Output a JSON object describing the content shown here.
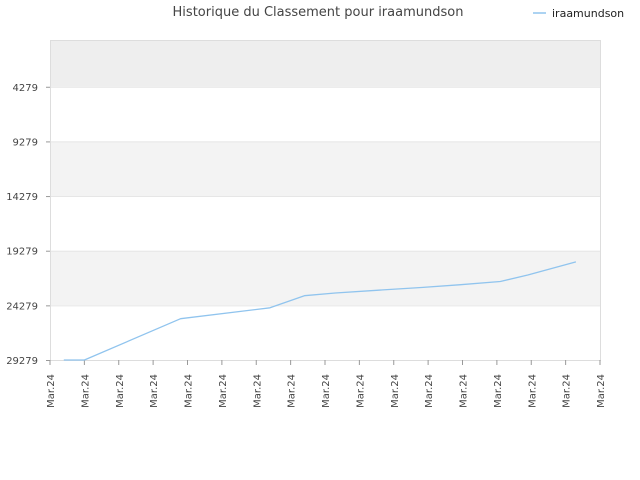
{
  "chart_data": {
    "type": "line",
    "title": "Historique du Classement pour iraamundson",
    "xlabel": "",
    "ylabel": "",
    "y_axis_inverted": true,
    "ylim": [
      0,
      29279
    ],
    "y_ticks": [
      "4279",
      "9279",
      "14279",
      "19279",
      "24279",
      "29279"
    ],
    "x_ticks": [
      "Mar.24",
      "Mar.24",
      "Mar.24",
      "Mar.24",
      "Mar.24",
      "Mar.24",
      "Mar.24",
      "Mar.24",
      "Mar.24",
      "Mar.24",
      "Mar.24",
      "Mar.24",
      "Mar.24",
      "Mar.24",
      "Mar.24",
      "Mar.24",
      "Mar.24"
    ],
    "legend_position": "top-right",
    "grid": true,
    "colors": {
      "line": "#90c4ee",
      "band_dark": "#eeeeee",
      "band_light": "#f3f3f3",
      "plot_border": "#dddddd"
    },
    "series": [
      {
        "name": "iraamundson",
        "x": [
          0.4,
          1.0,
          3.8,
          6.4,
          7.4,
          8.3,
          9.5,
          10.8,
          11.9,
          13.1,
          13.9,
          15.3
        ],
        "values": [
          29279,
          29279,
          25500,
          24500,
          23400,
          23150,
          22900,
          22650,
          22400,
          22100,
          21500,
          20300
        ]
      }
    ]
  }
}
